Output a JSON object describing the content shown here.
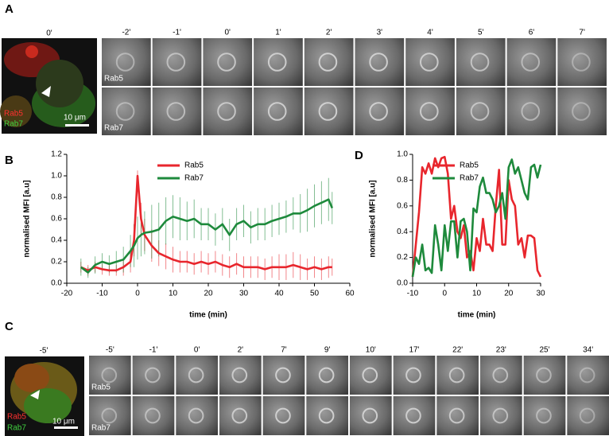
{
  "panel_labels": [
    "A",
    "B",
    "C",
    "D"
  ],
  "panel_a": {
    "overview_time": "0'",
    "overview_labels": [
      "Rab5",
      "Rab7"
    ],
    "scale_bar": "10 μm",
    "times": [
      "-2'",
      "-1'",
      "0'",
      "1'",
      "2'",
      "3'",
      "4'",
      "5'",
      "6'",
      "7'"
    ],
    "rows": [
      "Rab5",
      "Rab7"
    ]
  },
  "panel_c": {
    "overview_time": "-5'",
    "overview_labels": [
      "Rab5",
      "Rab7"
    ],
    "scale_bar": "10 μm",
    "times": [
      "-5'",
      "-1'",
      "0'",
      "2'",
      "7'",
      "9'",
      "10'",
      "17'",
      "22'",
      "23'",
      "25'",
      "34'"
    ],
    "rows": [
      "Rab5",
      "Rab7"
    ]
  },
  "chart_data": [
    {
      "type": "line",
      "xlabel": "time (min)",
      "ylabel": "normalised MFI [a.u]",
      "legend": "top",
      "x": [
        -16,
        -14,
        -12,
        -10,
        -8,
        -6,
        -4,
        -2,
        -1,
        0,
        1,
        2,
        4,
        6,
        8,
        10,
        12,
        14,
        16,
        18,
        20,
        22,
        24,
        26,
        28,
        30,
        32,
        34,
        36,
        38,
        40,
        42,
        44,
        46,
        48,
        50,
        52,
        54,
        55
      ],
      "series": [
        {
          "name": "Rab5",
          "color": "#e8262d",
          "values": [
            0.15,
            0.12,
            0.15,
            0.13,
            0.12,
            0.12,
            0.15,
            0.2,
            0.4,
            1.0,
            0.6,
            0.45,
            0.35,
            0.28,
            0.25,
            0.22,
            0.2,
            0.2,
            0.18,
            0.2,
            0.18,
            0.2,
            0.17,
            0.15,
            0.18,
            0.15,
            0.15,
            0.15,
            0.13,
            0.15,
            0.15,
            0.15,
            0.17,
            0.15,
            0.13,
            0.15,
            0.13,
            0.15,
            0.15
          ],
          "errors": [
            0.05,
            0.05,
            0.05,
            0.05,
            0.05,
            0.05,
            0.08,
            0.1,
            0.15,
            0.05,
            0.15,
            0.15,
            0.15,
            0.12,
            0.12,
            0.12,
            0.1,
            0.1,
            0.1,
            0.1,
            0.1,
            0.1,
            0.1,
            0.1,
            0.1,
            0.1,
            0.1,
            0.1,
            0.1,
            0.1,
            0.12,
            0.12,
            0.12,
            0.12,
            0.1,
            0.1,
            0.1,
            0.1,
            0.08
          ]
        },
        {
          "name": "Rab7",
          "color": "#1e8a3c",
          "values": [
            0.15,
            0.1,
            0.17,
            0.2,
            0.18,
            0.2,
            0.22,
            0.3,
            0.35,
            0.42,
            0.45,
            0.47,
            0.48,
            0.5,
            0.58,
            0.62,
            0.6,
            0.58,
            0.6,
            0.55,
            0.55,
            0.5,
            0.55,
            0.45,
            0.55,
            0.58,
            0.52,
            0.55,
            0.55,
            0.58,
            0.6,
            0.62,
            0.65,
            0.65,
            0.68,
            0.72,
            0.75,
            0.78,
            0.7
          ],
          "errors": [
            0.08,
            0.05,
            0.08,
            0.08,
            0.08,
            0.1,
            0.12,
            0.15,
            0.2,
            0.2,
            0.2,
            0.2,
            0.25,
            0.25,
            0.22,
            0.2,
            0.2,
            0.18,
            0.18,
            0.15,
            0.15,
            0.15,
            0.15,
            0.15,
            0.15,
            0.15,
            0.15,
            0.15,
            0.15,
            0.15,
            0.15,
            0.15,
            0.15,
            0.18,
            0.2,
            0.2,
            0.2,
            0.2,
            0.15
          ]
        }
      ],
      "xlim": [
        -20,
        60
      ],
      "ylim": [
        0,
        1.2
      ],
      "xticks": [
        -20,
        -10,
        0,
        10,
        20,
        30,
        40,
        50,
        60
      ],
      "yticks": [
        {
          "value": 0,
          "label": "0.0"
        },
        0.2,
        0.4,
        0.6,
        0.8,
        {
          "value": 1,
          "label": "1.0"
        },
        1.2
      ]
    },
    {
      "type": "line",
      "xlabel": "time (min)",
      "ylabel": "normalised MFI [a.u]",
      "legend": "top",
      "x": [
        -10,
        -9,
        -8,
        -7,
        -6,
        -5,
        -4,
        -3,
        -2,
        -1,
        0,
        1,
        2,
        3,
        4,
        5,
        6,
        7,
        8,
        9,
        10,
        11,
        12,
        13,
        14,
        15,
        16,
        17,
        18,
        19,
        20,
        21,
        22,
        23,
        24,
        25,
        26,
        27,
        28,
        29,
        30
      ],
      "series": [
        {
          "name": "Rab5",
          "color": "#e8262d",
          "values": [
            0.05,
            0.3,
            0.55,
            0.9,
            0.85,
            0.93,
            0.85,
            0.97,
            0.9,
            0.97,
            0.98,
            0.85,
            0.5,
            0.6,
            0.4,
            0.35,
            0.45,
            0.2,
            0.25,
            0.1,
            0.35,
            0.25,
            0.5,
            0.3,
            0.3,
            0.25,
            0.6,
            0.88,
            0.3,
            0.3,
            0.8,
            0.65,
            0.6,
            0.3,
            0.35,
            0.2,
            0.37,
            0.37,
            0.35,
            0.1,
            0.05
          ]
        },
        {
          "name": "Rab7",
          "color": "#1e8a3c",
          "values": [
            0.05,
            0.2,
            0.15,
            0.3,
            0.1,
            0.12,
            0.08,
            0.45,
            0.3,
            0.1,
            0.45,
            0.25,
            0.48,
            0.48,
            0.2,
            0.48,
            0.5,
            0.4,
            0.1,
            0.58,
            0.55,
            0.75,
            0.82,
            0.7,
            0.7,
            0.65,
            0.55,
            0.6,
            0.7,
            0.5,
            0.9,
            0.96,
            0.85,
            0.9,
            0.8,
            0.7,
            0.65,
            0.9,
            0.92,
            0.82,
            0.92
          ]
        }
      ],
      "xlim": [
        -10,
        30
      ],
      "ylim": [
        0,
        1
      ],
      "xticks": [
        -10,
        0,
        10,
        20,
        30
      ],
      "yticks": [
        {
          "value": 0,
          "label": "0.0"
        },
        0.2,
        0.4,
        0.6,
        0.8,
        {
          "value": 1,
          "label": "1.0"
        }
      ]
    }
  ]
}
